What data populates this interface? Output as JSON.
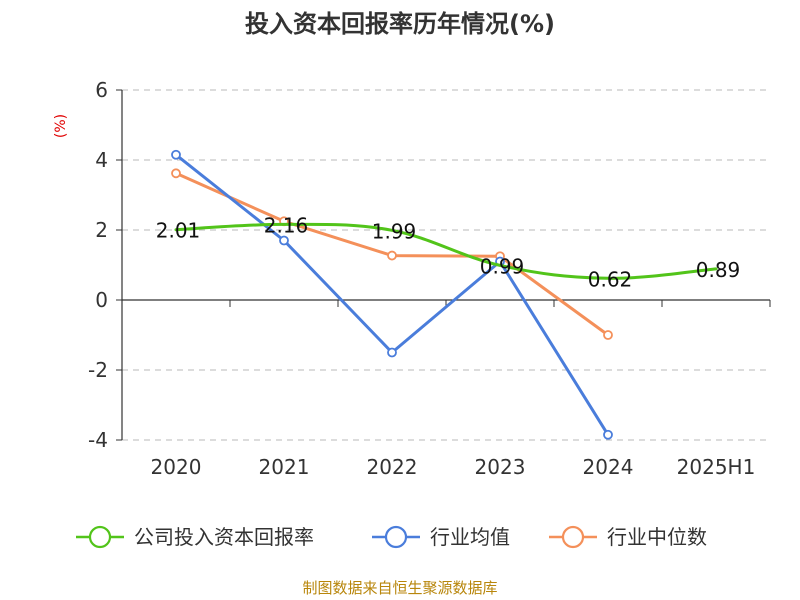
{
  "title": "投入资本回报率历年情况(%)",
  "unit_label": "(%)",
  "source": "制图数据来自恒生聚源数据库",
  "chart_data": {
    "type": "line",
    "title": "投入资本回报率历年情况(%)",
    "ylabel": "(%)",
    "categories": [
      "2020",
      "2021",
      "2022",
      "2023",
      "2024",
      "2025H1"
    ],
    "ylim": [
      -4,
      6
    ],
    "yticks": [
      -4,
      -2,
      0,
      2,
      4,
      6
    ],
    "grid": "horizontal-dashed",
    "legend_position": "bottom",
    "series": [
      {
        "name": "公司投入资本回报率",
        "color": "#52c41a",
        "values": [
          2.01,
          2.16,
          1.99,
          0.99,
          0.62,
          0.89
        ],
        "labels": [
          "2.01",
          "2.16",
          "1.99",
          "0.99",
          "0.62",
          "0.89"
        ],
        "smooth": true
      },
      {
        "name": "行业均值",
        "color": "#4a7ddb",
        "values": [
          4.15,
          1.7,
          -1.5,
          1.1,
          -3.85,
          null
        ]
      },
      {
        "name": "行业中位数",
        "color": "#f4905a",
        "values": [
          3.62,
          2.25,
          1.27,
          1.25,
          -1.0,
          null
        ]
      }
    ]
  }
}
